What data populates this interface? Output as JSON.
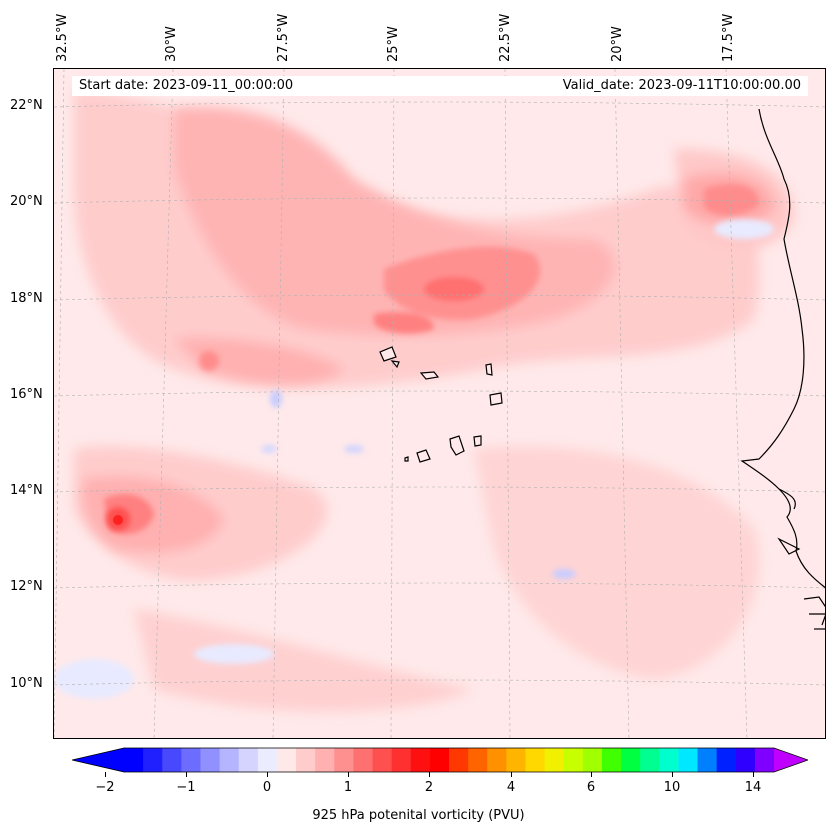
{
  "map": {
    "lon_labels": [
      "32.5°W",
      "30°W",
      "27.5°W",
      "25°W",
      "22.5°W",
      "20°W",
      "17.5°W"
    ],
    "lat_labels": [
      "22°N",
      "20°N",
      "18°N",
      "16°N",
      "14°N",
      "12°N",
      "10°N"
    ],
    "start_date": "Start date: 2023-09-11_00:00:00",
    "valid_date": "Valid_date: 2023-09-11T10:00:00.00"
  },
  "colorbar": {
    "title": "925 hPa potenital vorticity (PVU)",
    "tick_labels": [
      "−2",
      "−1",
      "0",
      "1",
      "2",
      "4",
      "6",
      "10",
      "14"
    ],
    "colors": [
      "#0000ff",
      "#2020ff",
      "#4848ff",
      "#6c6cff",
      "#9090ff",
      "#b4b4ff",
      "#d4d4ff",
      "#ececff",
      "#ffe8e8",
      "#ffcccc",
      "#ffb0b0",
      "#ff9090",
      "#ff7070",
      "#ff5050",
      "#ff3030",
      "#ff1010",
      "#ff0000",
      "#ff3800",
      "#ff6400",
      "#ff9000",
      "#ffb400",
      "#ffd800",
      "#f0f000",
      "#c8ff00",
      "#a0ff00",
      "#40ff00",
      "#00ff40",
      "#00ff90",
      "#00ffcc",
      "#00e8ff",
      "#0080ff",
      "#0020ff",
      "#3000ff",
      "#8000ff"
    ],
    "under_color": "#0000ff",
    "over_color": "#c000ff"
  },
  "theme": {
    "background": "#ffe9ea",
    "coast": "#000000"
  }
}
